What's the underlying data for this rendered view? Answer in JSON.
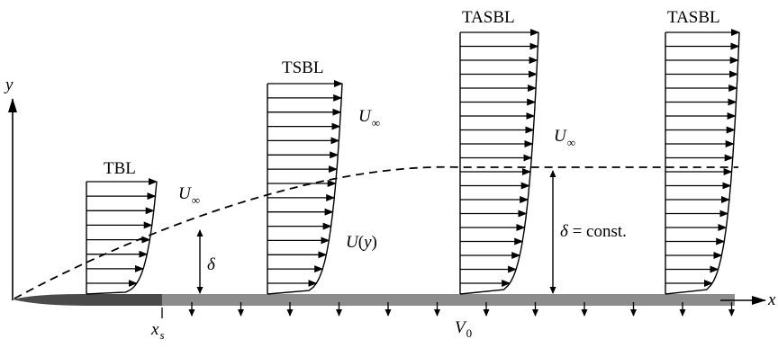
{
  "axes": {
    "x_label": "x",
    "y_label": "y"
  },
  "wall": {
    "x_s_label": "x",
    "x_s_sub": "s",
    "v0_label": "V",
    "v0_sub": "0"
  },
  "boundary_layer": {
    "delta_label": "δ",
    "delta_const_prefix": "δ",
    "delta_const_suffix": " = const."
  },
  "profiles": [
    {
      "name": "TBL"
    },
    {
      "name": "TSBL"
    },
    {
      "name": "TASBL"
    },
    {
      "name": "TASBL"
    }
  ],
  "freestream": {
    "u_inf_label": "U",
    "u_inf_sub": "∞",
    "u_y_prefix": "U",
    "u_y_paren_open": "(",
    "u_y_var": "y",
    "u_y_paren_close": ")"
  },
  "colors": {
    "wall_gray": "#8c8c8c",
    "leading_edge_dark": "#4a4a4a",
    "ink": "#000000"
  }
}
